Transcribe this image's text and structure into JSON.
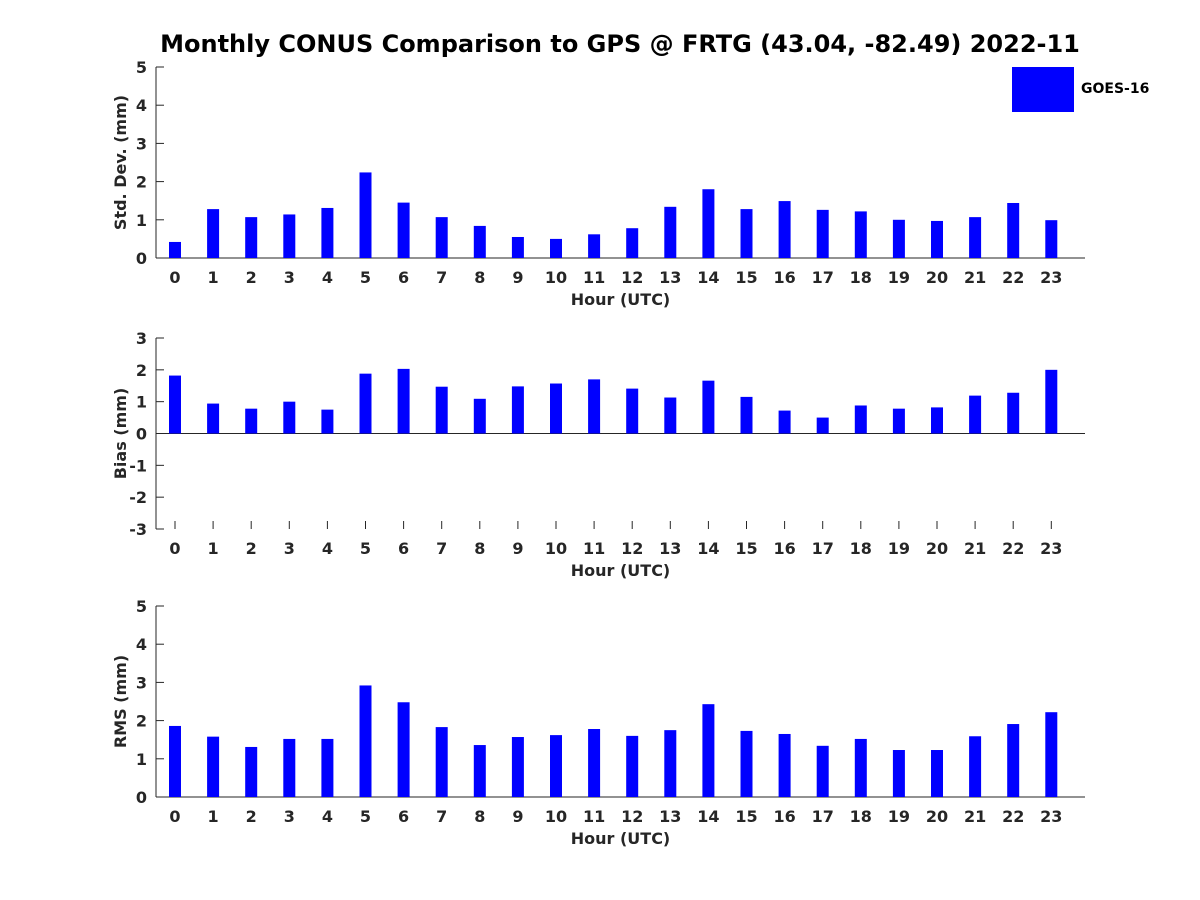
{
  "title": "Monthly CONUS Comparison to GPS @ FRTG (43.04, -82.49) 2022-11",
  "legend": {
    "label": "GOES-16",
    "color": "#0000ff"
  },
  "chart_data": [
    {
      "type": "bar",
      "title": "",
      "xlabel": "Hour (UTC)",
      "ylabel": "Std. Dev. (mm)",
      "ylim": [
        0,
        5
      ],
      "yticks": [
        0,
        1,
        2,
        3,
        4,
        5
      ],
      "categories": [
        "0",
        "1",
        "2",
        "3",
        "4",
        "5",
        "6",
        "7",
        "8",
        "9",
        "10",
        "11",
        "12",
        "13",
        "14",
        "15",
        "16",
        "17",
        "18",
        "19",
        "20",
        "21",
        "22",
        "23"
      ],
      "series": [
        {
          "name": "GOES-16",
          "color": "#0000ff",
          "values": [
            0.42,
            1.28,
            1.07,
            1.14,
            1.31,
            2.24,
            1.45,
            1.07,
            0.84,
            0.55,
            0.5,
            0.62,
            0.78,
            1.34,
            1.8,
            1.28,
            1.49,
            1.26,
            1.22,
            1.0,
            0.97,
            1.07,
            1.44,
            0.99
          ]
        }
      ],
      "grid": false
    },
    {
      "type": "bar",
      "title": "",
      "xlabel": "Hour (UTC)",
      "ylabel": "Bias (mm)",
      "ylim": [
        -3,
        3
      ],
      "yticks": [
        -3,
        -2,
        -1,
        0,
        1,
        2,
        3
      ],
      "categories": [
        "0",
        "1",
        "2",
        "3",
        "4",
        "5",
        "6",
        "7",
        "8",
        "9",
        "10",
        "11",
        "12",
        "13",
        "14",
        "15",
        "16",
        "17",
        "18",
        "19",
        "20",
        "21",
        "22",
        "23"
      ],
      "series": [
        {
          "name": "GOES-16",
          "color": "#0000ff",
          "values": [
            1.82,
            0.94,
            0.78,
            1.0,
            0.75,
            1.88,
            2.03,
            1.47,
            1.09,
            1.48,
            1.57,
            1.7,
            1.41,
            1.13,
            1.66,
            1.15,
            0.72,
            0.5,
            0.88,
            0.78,
            0.82,
            1.19,
            1.28,
            2.0
          ]
        }
      ],
      "grid": false
    },
    {
      "type": "bar",
      "title": "",
      "xlabel": "Hour (UTC)",
      "ylabel": "RMS (mm)",
      "ylim": [
        0,
        5
      ],
      "yticks": [
        0,
        1,
        2,
        3,
        4,
        5
      ],
      "categories": [
        "0",
        "1",
        "2",
        "3",
        "4",
        "5",
        "6",
        "7",
        "8",
        "9",
        "10",
        "11",
        "12",
        "13",
        "14",
        "15",
        "16",
        "17",
        "18",
        "19",
        "20",
        "21",
        "22",
        "23"
      ],
      "series": [
        {
          "name": "GOES-16",
          "color": "#0000ff",
          "values": [
            1.86,
            1.58,
            1.31,
            1.52,
            1.52,
            2.92,
            2.48,
            1.83,
            1.36,
            1.57,
            1.62,
            1.78,
            1.6,
            1.75,
            2.43,
            1.73,
            1.65,
            1.34,
            1.52,
            1.23,
            1.23,
            1.59,
            1.91,
            2.22
          ]
        }
      ],
      "grid": false
    }
  ]
}
